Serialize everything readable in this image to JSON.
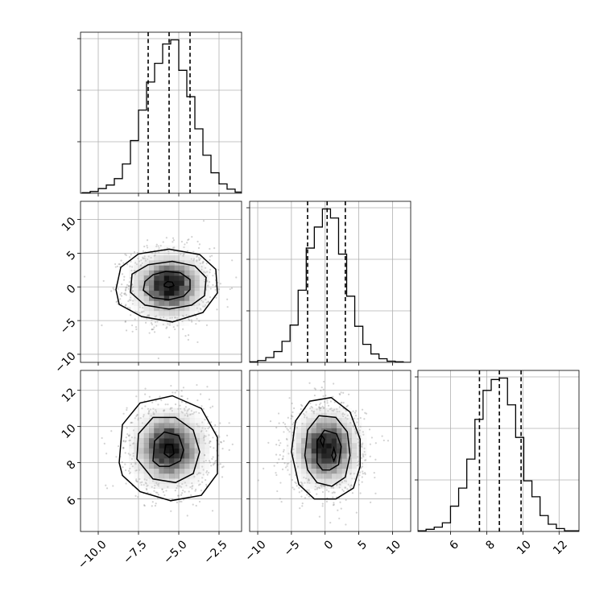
{
  "chart_data": {
    "type": "corner",
    "grid": true,
    "variables": [
      {
        "range": [
          -11.1,
          -1.1
        ],
        "ticks": [
          -10.0,
          -7.5,
          -5.0,
          -2.5
        ],
        "tick_labels": [
          "−10.0",
          "−7.5",
          "−5.0",
          "−2.5"
        ],
        "quantiles": [
          -6.9,
          -5.6,
          -4.3
        ],
        "hist_bins": [
          -11.0,
          -10.5,
          -10.0,
          -9.5,
          -9.0,
          -8.5,
          -8.0,
          -7.5,
          -7.0,
          -6.5,
          -6.0,
          -5.5,
          -5.0,
          -4.5,
          -4.0,
          -3.5,
          -3.0,
          -2.5,
          -2.0,
          -1.5,
          -1.0
        ],
        "hist_counts": [
          1,
          3,
          8,
          14,
          25,
          50,
          90,
          142,
          190,
          222,
          255,
          262,
          210,
          165,
          110,
          65,
          35,
          16,
          7,
          2
        ],
        "center": -5.6,
        "sd": 1.3
      },
      {
        "range": [
          -11.2,
          12.7
        ],
        "ticks": [
          -10,
          -5,
          0,
          5,
          10
        ],
        "tick_labels": [
          "−10",
          "−5",
          "0",
          "5",
          "10"
        ],
        "quantiles": [
          -2.6,
          0.3,
          3.0
        ],
        "hist_bins": [
          -11.2,
          -10.0,
          -8.8,
          -7.6,
          -6.4,
          -5.2,
          -4.0,
          -2.8,
          -1.6,
          -0.4,
          0.8,
          2.0,
          3.2,
          4.4,
          5.6,
          6.8,
          8.0,
          9.2,
          10.4,
          11.6,
          12.8
        ],
        "hist_counts": [
          1,
          3,
          8,
          18,
          35,
          62,
          120,
          190,
          225,
          255,
          240,
          180,
          110,
          60,
          30,
          14,
          6,
          2,
          1,
          0
        ],
        "center": 0.2,
        "sd": 2.8
      },
      {
        "range": [
          4.2,
          13.1
        ],
        "ticks": [
          6,
          8,
          10,
          12
        ],
        "tick_labels": [
          "6",
          "8",
          "10",
          "12"
        ],
        "quantiles": [
          7.6,
          8.7,
          9.9
        ],
        "hist_bins": [
          4.2,
          4.65,
          5.1,
          5.55,
          6.0,
          6.45,
          6.9,
          7.35,
          7.8,
          8.25,
          8.7,
          9.15,
          9.6,
          10.05,
          10.5,
          10.95,
          11.4,
          11.85,
          12.3,
          12.75,
          13.2
        ],
        "hist_counts": [
          1,
          3,
          6,
          12,
          35,
          60,
          100,
          155,
          195,
          210,
          212,
          175,
          130,
          70,
          48,
          22,
          10,
          4,
          1,
          1
        ],
        "center": 8.8,
        "sd": 1.2
      }
    ],
    "pairs": [
      {
        "row": 1,
        "col": 0,
        "contours": [
          [
            [
              -7.2,
              -0.5
            ],
            [
              -7.1,
              0.8
            ],
            [
              -6.6,
              1.8
            ],
            [
              -5.8,
              2.3
            ],
            [
              -4.9,
              2.1
            ],
            [
              -4.3,
              1.1
            ],
            [
              -4.3,
              -0.4
            ],
            [
              -4.7,
              -1.4
            ],
            [
              -5.6,
              -1.9
            ],
            [
              -6.6,
              -1.6
            ],
            [
              -7.2,
              -0.5
            ]
          ],
          [
            [
              -8.0,
              -0.8
            ],
            [
              -7.9,
              1.9
            ],
            [
              -6.9,
              3.3
            ],
            [
              -5.4,
              3.8
            ],
            [
              -4.0,
              3.1
            ],
            [
              -3.3,
              1.4
            ],
            [
              -3.4,
              -1.3
            ],
            [
              -4.2,
              -2.7
            ],
            [
              -5.6,
              -3.3
            ],
            [
              -7.1,
              -2.7
            ],
            [
              -8.0,
              -0.8
            ]
          ],
          [
            [
              -8.9,
              -0.4
            ],
            [
              -8.6,
              2.9
            ],
            [
              -7.5,
              4.9
            ],
            [
              -5.6,
              5.6
            ],
            [
              -3.7,
              4.8
            ],
            [
              -2.7,
              2.6
            ],
            [
              -2.6,
              -0.9
            ],
            [
              -3.5,
              -3.8
            ],
            [
              -5.4,
              -5.2
            ],
            [
              -7.3,
              -4.4
            ],
            [
              -8.7,
              -2.6
            ],
            [
              -8.9,
              -0.4
            ]
          ],
          [
            [
              -5.9,
              0.4
            ],
            [
              -5.7,
              0.8
            ],
            [
              -5.4,
              0.7
            ],
            [
              -5.3,
              0.2
            ],
            [
              -5.6,
              -0.1
            ],
            [
              -5.9,
              0.1
            ],
            [
              -5.9,
              0.4
            ]
          ]
        ]
      },
      {
        "row": 2,
        "col": 0,
        "contours": [
          [
            [
              -6.6,
              8.1
            ],
            [
              -6.5,
              9.2
            ],
            [
              -5.9,
              9.7
            ],
            [
              -5.0,
              9.5
            ],
            [
              -4.7,
              8.7
            ],
            [
              -4.9,
              8.1
            ],
            [
              -5.6,
              7.8
            ],
            [
              -6.2,
              7.8
            ],
            [
              -6.6,
              8.1
            ]
          ],
          [
            [
              -7.6,
              8.2
            ],
            [
              -7.5,
              9.6
            ],
            [
              -6.6,
              10.5
            ],
            [
              -5.2,
              10.5
            ],
            [
              -4.1,
              9.8
            ],
            [
              -3.7,
              8.6
            ],
            [
              -4.1,
              7.4
            ],
            [
              -5.2,
              6.9
            ],
            [
              -6.6,
              7.1
            ],
            [
              -7.6,
              8.2
            ]
          ],
          [
            [
              -8.7,
              8.0
            ],
            [
              -8.5,
              10.1
            ],
            [
              -7.4,
              11.3
            ],
            [
              -5.4,
              11.7
            ],
            [
              -3.6,
              11.0
            ],
            [
              -2.6,
              9.4
            ],
            [
              -2.6,
              7.4
            ],
            [
              -3.6,
              6.2
            ],
            [
              -5.5,
              5.9
            ],
            [
              -7.4,
              6.4
            ],
            [
              -8.5,
              7.3
            ],
            [
              -8.7,
              8.0
            ]
          ],
          [
            [
              -5.9,
              8.5
            ],
            [
              -5.8,
              9.0
            ],
            [
              -5.4,
              9.0
            ],
            [
              -5.3,
              8.5
            ],
            [
              -5.6,
              8.3
            ],
            [
              -5.9,
              8.5
            ]
          ]
        ]
      },
      {
        "row": 2,
        "col": 1,
        "contours": [
          [
            [
              -1.2,
              8.0
            ],
            [
              -1.2,
              9.2
            ],
            [
              -0.1,
              9.8
            ],
            [
              1.7,
              9.6
            ],
            [
              2.4,
              8.9
            ],
            [
              2.0,
              7.9
            ],
            [
              0.7,
              7.6
            ],
            [
              -0.4,
              7.6
            ],
            [
              -1.2,
              8.0
            ]
          ],
          [
            [
              -3.0,
              8.4
            ],
            [
              -2.6,
              9.8
            ],
            [
              -0.9,
              10.6
            ],
            [
              1.6,
              10.5
            ],
            [
              3.3,
              9.7
            ],
            [
              3.7,
              8.4
            ],
            [
              3.0,
              7.2
            ],
            [
              1.0,
              6.7
            ],
            [
              -1.2,
              6.9
            ],
            [
              -2.6,
              7.6
            ],
            [
              -3.0,
              8.4
            ]
          ],
          [
            [
              -5.0,
              8.6
            ],
            [
              -4.4,
              10.3
            ],
            [
              -2.3,
              11.4
            ],
            [
              0.9,
              11.6
            ],
            [
              3.7,
              10.8
            ],
            [
              5.2,
              9.3
            ],
            [
              5.2,
              7.8
            ],
            [
              4.2,
              6.6
            ],
            [
              1.6,
              6.0
            ],
            [
              -1.6,
              6.0
            ],
            [
              -3.9,
              6.8
            ],
            [
              -5.0,
              8.6
            ]
          ],
          [
            [
              -0.7,
              9.2
            ],
            [
              -0.5,
              9.5
            ],
            [
              -0.1,
              9.3
            ],
            [
              -0.3,
              8.9
            ],
            [
              -0.7,
              9.2
            ]
          ],
          [
            [
              1.0,
              8.4
            ],
            [
              1.3,
              8.8
            ],
            [
              1.6,
              8.4
            ],
            [
              1.3,
              8.1
            ],
            [
              1.0,
              8.4
            ]
          ]
        ]
      }
    ]
  }
}
